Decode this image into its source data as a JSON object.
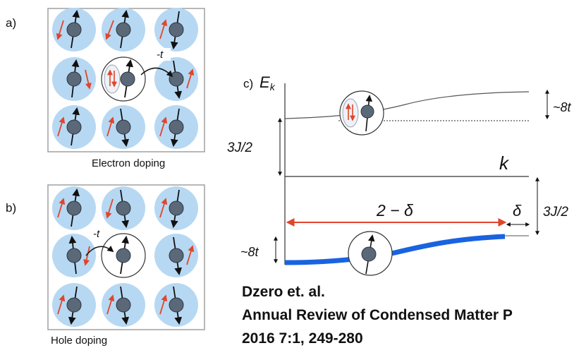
{
  "panel_a": {
    "label": "a)",
    "hop": "-t",
    "caption": "Electron doping"
  },
  "panel_b": {
    "label": "b)",
    "hop": "-t",
    "caption": "Hole doping"
  },
  "panel_c": {
    "label": "c)",
    "energy_axis": "E",
    "energy_subscript": "k",
    "k_axis": "k",
    "upper_width": "~8t",
    "upper_gap": "3J/2",
    "lower_gap": "3J/2",
    "filling": "2 − δ",
    "delta": "δ",
    "lower_width": "~8t"
  },
  "citation": {
    "line1": "Dzero et. al.",
    "line2": "Annual Review of Condensed Matter P",
    "line3": "2016 7:1, 249-280"
  },
  "colors": {
    "site_fill": "#b7d8f2",
    "spin_fill": "#5a6878",
    "red_spin": "#e0452c",
    "band_blue": "#1a63e0",
    "box_border": "#a0a0a0"
  }
}
